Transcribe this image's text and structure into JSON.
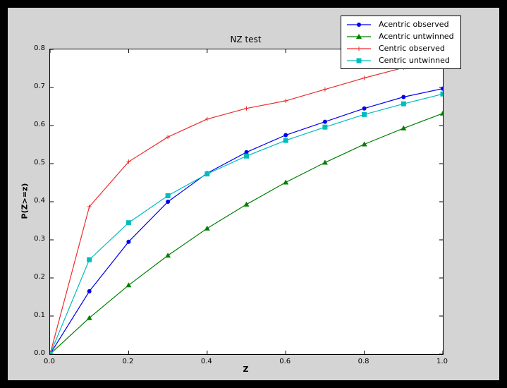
{
  "window": {
    "outer_background": "#000000",
    "figure_background": "#d4d4d4",
    "axes_background": "#ffffff"
  },
  "chart_data": {
    "type": "line",
    "title": "NZ test",
    "xlabel": "Z",
    "ylabel": "P(Z>=z)",
    "xlim": [
      0,
      1
    ],
    "ylim": [
      0,
      0.8
    ],
    "xticks": [
      "0.0",
      "0.2",
      "0.4",
      "0.6",
      "0.8",
      "1.0"
    ],
    "yticks": [
      "0.0",
      "0.1",
      "0.2",
      "0.3",
      "0.4",
      "0.5",
      "0.6",
      "0.7",
      "0.8"
    ],
    "grid": false,
    "legend_position": "upper right",
    "x": [
      0.0,
      0.1,
      0.2,
      0.3,
      0.4,
      0.5,
      0.6,
      0.7,
      0.8,
      0.9,
      1.0
    ],
    "series": [
      {
        "name": "Acentric observed",
        "color": "#0000ee",
        "marker": "circle",
        "values": [
          0.0,
          0.165,
          0.295,
          0.4,
          0.475,
          0.53,
          0.575,
          0.61,
          0.645,
          0.675,
          0.697
        ]
      },
      {
        "name": "Acentric untwinned",
        "color": "#007f00",
        "marker": "triangle",
        "values": [
          0.0,
          0.095,
          0.181,
          0.259,
          0.33,
          0.393,
          0.451,
          0.503,
          0.551,
          0.593,
          0.632
        ]
      },
      {
        "name": "Centric observed",
        "color": "#ee2c2c",
        "marker": "plus",
        "values": [
          0.0,
          0.387,
          0.505,
          0.57,
          0.617,
          0.645,
          0.665,
          0.695,
          0.725,
          0.752,
          0.775
        ]
      },
      {
        "name": "Centric untwinned",
        "color": "#00bcbc",
        "marker": "square",
        "values": [
          0.0,
          0.248,
          0.345,
          0.416,
          0.473,
          0.52,
          0.561,
          0.596,
          0.629,
          0.657,
          0.683
        ]
      }
    ]
  }
}
